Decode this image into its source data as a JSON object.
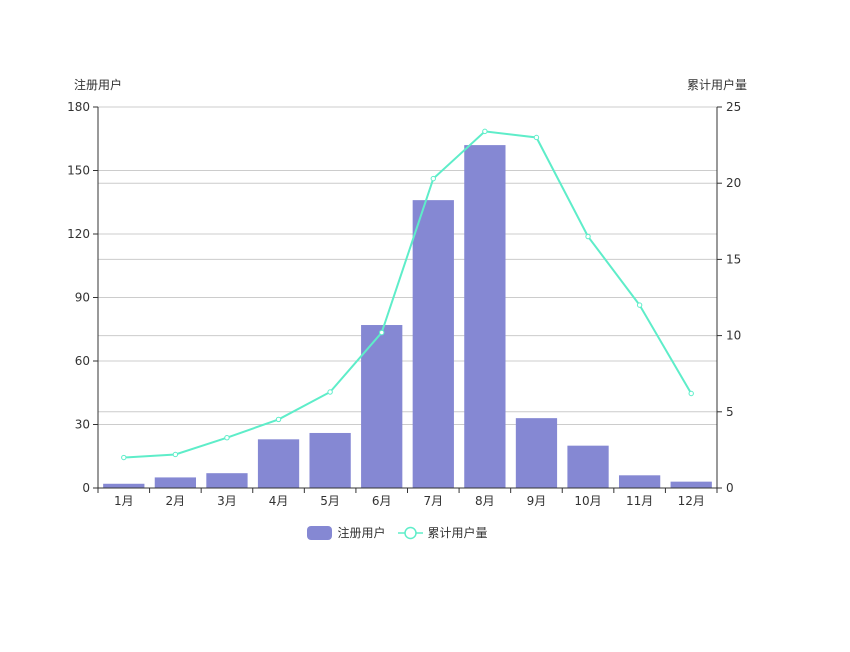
{
  "colors": {
    "bar": "#8588d3",
    "line": "#5eedc9",
    "axis": "#333333",
    "grid": "#cccccc",
    "text": "#333333"
  },
  "legend": {
    "bar_label": "注册用户",
    "line_label": "累计用户量"
  },
  "chart_data": {
    "type": "bar",
    "categories": [
      "1月",
      "2月",
      "3月",
      "4月",
      "5月",
      "6月",
      "7月",
      "8月",
      "9月",
      "10月",
      "11月",
      "12月"
    ],
    "series": [
      {
        "name": "注册用户",
        "type": "bar",
        "axis": "left",
        "values": [
          2,
          5,
          7,
          23,
          26,
          77,
          136,
          162,
          33,
          20,
          6,
          3
        ]
      },
      {
        "name": "累计用户量",
        "type": "line",
        "axis": "right",
        "values": [
          2,
          2.2,
          3.3,
          4.5,
          6.3,
          10.2,
          20.3,
          23.4,
          23.0,
          16.5,
          12.0,
          6.2
        ]
      }
    ],
    "y_left": {
      "label": "注册用户",
      "ylim": [
        0,
        180
      ],
      "ticks": [
        "0",
        "30",
        "60",
        "90",
        "120",
        "150",
        "180"
      ]
    },
    "y_right": {
      "label": "累计用户量",
      "ylim": [
        0,
        25
      ],
      "ticks": [
        "0",
        "5",
        "10",
        "15",
        "20",
        "25"
      ]
    },
    "grid": true,
    "legend_position": "bottom"
  }
}
